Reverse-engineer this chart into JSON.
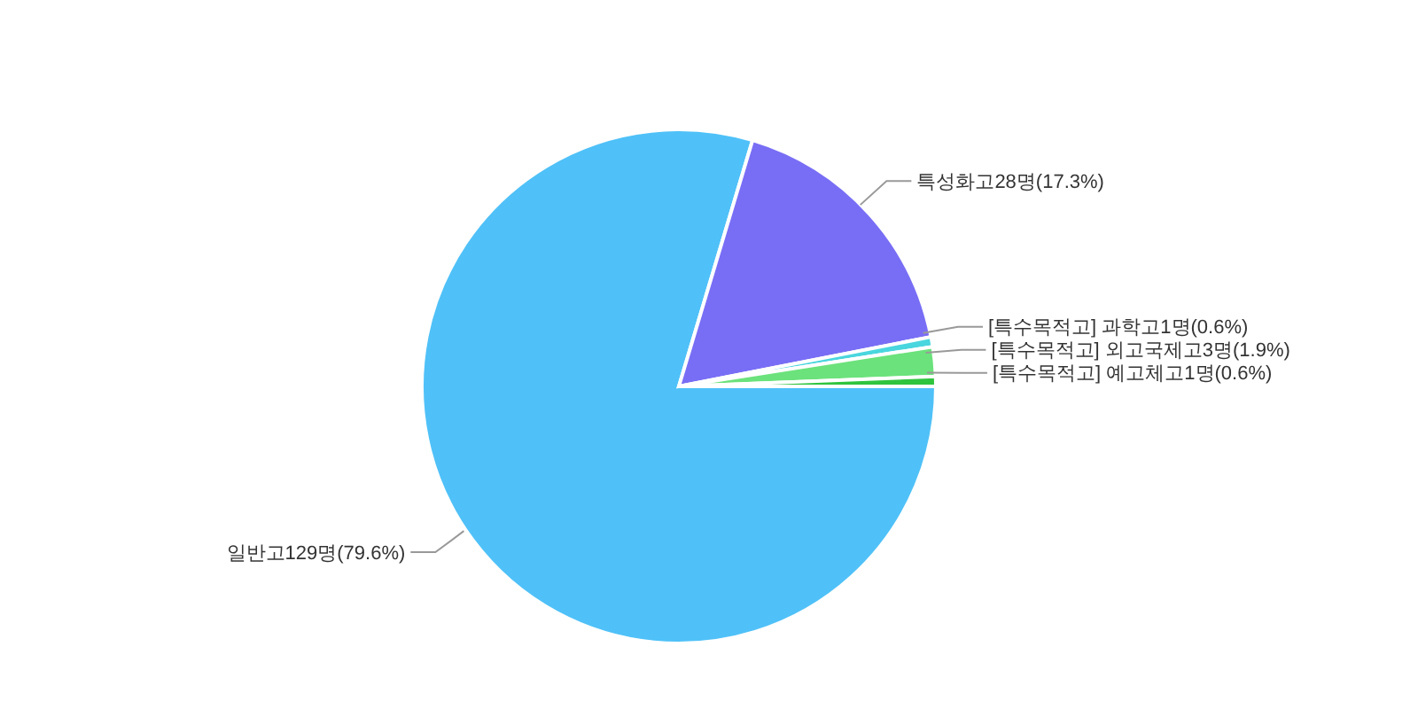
{
  "chart_data": {
    "type": "pie",
    "categories": [
      "일반고",
      "특성화고",
      "[특수목적고] 과학고",
      "[특수목적고] 외고국제고",
      "[특수목적고] 예고체고"
    ],
    "values": [
      129,
      28,
      1,
      3,
      1
    ],
    "value_labels": [
      "129명(79.6%)",
      "28명(17.3%)",
      "1명(0.6%)",
      "3명(1.9%)",
      "1명(0.6%)"
    ],
    "colors": [
      "#4fc1f8",
      "#786ef5",
      "#4ad6de",
      "#6be27b",
      "#2fc43e"
    ]
  }
}
